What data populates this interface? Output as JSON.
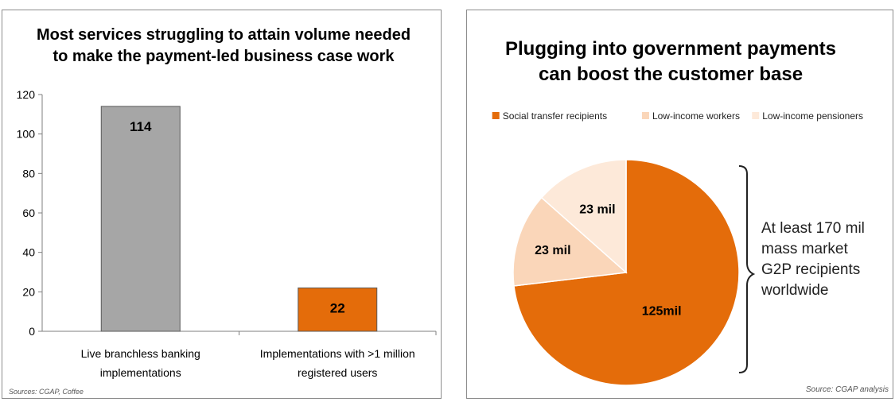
{
  "chart_data": [
    {
      "type": "bar",
      "title": "Most services struggling to attain volume needed to make the payment-led business case work",
      "title_lines": [
        "Most services struggling to attain volume needed",
        "to make the payment-led business case work"
      ],
      "categories": [
        "Live branchless banking implementations",
        "Implementations with >1 million registered users"
      ],
      "category_lines": [
        [
          "Live branchless banking",
          "implementations"
        ],
        [
          "Implementations with >1 million",
          "registered users"
        ]
      ],
      "values": [
        114,
        22
      ],
      "data_labels": [
        "114",
        "22"
      ],
      "bar_colors": [
        "#a6a6a6",
        "#e46c0a"
      ],
      "yticks": [
        "0",
        "20",
        "40",
        "60",
        "80",
        "100",
        "120"
      ],
      "ylim": [
        0,
        120
      ],
      "xlabel": "",
      "ylabel": "",
      "grid": false,
      "source": "Sources: CGAP, Coffee"
    },
    {
      "type": "pie",
      "title": "Plugging into government payments can boost the customer base",
      "title_lines": [
        "Plugging into government payments",
        "can boost the customer base"
      ],
      "legend": [
        "Social transfer recipients",
        "Low-income workers",
        "Low-income pensioners"
      ],
      "legend_position": "top",
      "slices": [
        {
          "name": "Social transfer recipients",
          "value": 125,
          "label": "125mil",
          "color": "#e46c0a"
        },
        {
          "name": "Low-income workers",
          "value": 23,
          "label": "23 mil",
          "color": "#fad6b9"
        },
        {
          "name": "Low-income pensioners",
          "value": 23,
          "label": "23 mil",
          "color": "#fde9d9"
        }
      ],
      "annotation_lines": [
        "At least 170 mil",
        "mass market",
        "G2P recipients",
        "worldwide"
      ],
      "source": "Source: CGAP analysis"
    }
  ]
}
